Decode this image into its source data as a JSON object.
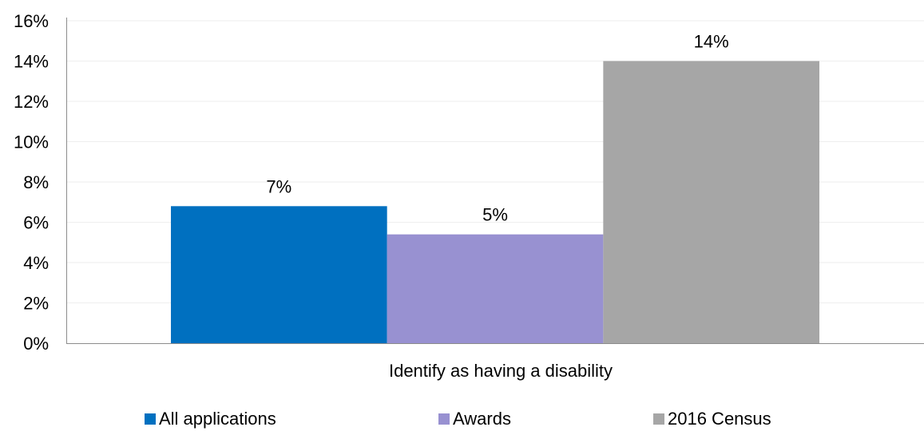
{
  "chart_data": {
    "type": "bar",
    "categories": [
      "Identify as having a disability"
    ],
    "series": [
      {
        "name": "All applications",
        "values": [
          6.8
        ],
        "color": "#0070c0",
        "label": "7%"
      },
      {
        "name": "Awards",
        "values": [
          5.4
        ],
        "color": "#9891d1",
        "label": "5%"
      },
      {
        "name": "2016 Census",
        "values": [
          14
        ],
        "color": "#a6a6a6",
        "label": "14%"
      }
    ],
    "ylim": [
      0,
      16
    ],
    "yticks": [
      0,
      2,
      4,
      6,
      8,
      10,
      12,
      14,
      16
    ],
    "ytick_labels": [
      "0%",
      "2%",
      "4%",
      "6%",
      "8%",
      "10%",
      "12%",
      "14%",
      "16%"
    ],
    "grid": true,
    "legend_position": "bottom"
  }
}
